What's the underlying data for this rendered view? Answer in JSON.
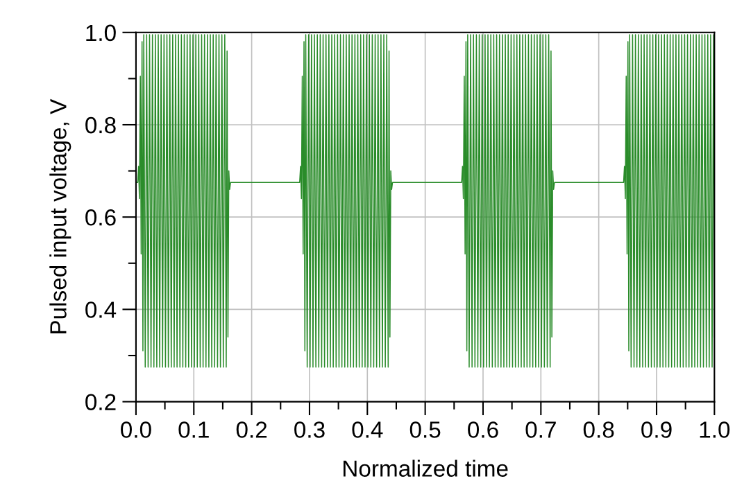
{
  "chart_data": {
    "type": "line",
    "xlabel": "Normalized time",
    "ylabel": "Pulsed input voltage, V",
    "xlim": [
      0,
      1
    ],
    "ylim": [
      0.2,
      1.0
    ],
    "xticks": [
      {
        "value": 0,
        "label": "0.0"
      },
      {
        "value": 0.05,
        "label": null
      },
      {
        "value": 0.1,
        "label": "0.1"
      },
      {
        "value": 0.15,
        "label": null
      },
      {
        "value": 0.2,
        "label": "0.2"
      },
      {
        "value": 0.25,
        "label": null
      },
      {
        "value": 0.3,
        "label": "0.3"
      },
      {
        "value": 0.35,
        "label": null
      },
      {
        "value": 0.4,
        "label": "0.4"
      },
      {
        "value": 0.45,
        "label": null
      },
      {
        "value": 0.5,
        "label": "0.5"
      },
      {
        "value": 0.55,
        "label": null
      },
      {
        "value": 0.6,
        "label": "0.6"
      },
      {
        "value": 0.65,
        "label": null
      },
      {
        "value": 0.7,
        "label": "0.7"
      },
      {
        "value": 0.75,
        "label": null
      },
      {
        "value": 0.8,
        "label": "0.8"
      },
      {
        "value": 0.85,
        "label": null
      },
      {
        "value": 0.9,
        "label": "0.9"
      },
      {
        "value": 0.95,
        "label": null
      },
      {
        "value": 1.0,
        "label": "1.0"
      }
    ],
    "yticks": [
      {
        "value": 0.2,
        "label": "0.2"
      },
      {
        "value": 0.3,
        "label": null
      },
      {
        "value": 0.4,
        "label": "0.4"
      },
      {
        "value": 0.5,
        "label": null
      },
      {
        "value": 0.6,
        "label": "0.6"
      },
      {
        "value": 0.7,
        "label": null
      },
      {
        "value": 0.8,
        "label": "0.8"
      },
      {
        "value": 0.9,
        "label": null
      },
      {
        "value": 1.0,
        "label": "1.0"
      }
    ],
    "grid": true,
    "marker": "none",
    "line_style": "solid",
    "series": [
      {
        "color": "#2a8c2a",
        "x": [
          0,
          0.003,
          0.0045,
          0.006,
          0.0075,
          0.009,
          0.0105,
          0.012,
          0.0135,
          0.016,
          0.0185,
          0.021,
          0.0235,
          0.026,
          0.0285,
          0.031,
          0.0335,
          0.036,
          0.0385,
          0.041,
          0.0435,
          0.046,
          0.0485,
          0.051,
          0.0535,
          0.056,
          0.0585,
          0.061,
          0.0635,
          0.066,
          0.0685,
          0.071,
          0.0735,
          0.076,
          0.0785,
          0.081,
          0.0835,
          0.086,
          0.0885,
          0.091,
          0.0935,
          0.096,
          0.0985,
          0.101,
          0.1035,
          0.106,
          0.1085,
          0.111,
          0.1135,
          0.116,
          0.1185,
          0.121,
          0.1235,
          0.126,
          0.1285,
          0.131,
          0.1335,
          0.136,
          0.1385,
          0.141,
          0.1435,
          0.146,
          0.1485,
          0.151,
          0.1535,
          0.156,
          0.1575,
          0.159,
          0.1605,
          0.162,
          0.1635,
          0.283,
          0.2845,
          0.286,
          0.2875,
          0.289,
          0.2905,
          0.292,
          0.2935,
          0.296,
          0.2985,
          0.301,
          0.3035,
          0.306,
          0.3085,
          0.311,
          0.3135,
          0.316,
          0.3185,
          0.321,
          0.3235,
          0.326,
          0.3285,
          0.331,
          0.3335,
          0.336,
          0.3385,
          0.341,
          0.3435,
          0.346,
          0.3485,
          0.351,
          0.3535,
          0.356,
          0.3585,
          0.361,
          0.3635,
          0.366,
          0.3685,
          0.371,
          0.3735,
          0.376,
          0.3785,
          0.381,
          0.3835,
          0.386,
          0.3885,
          0.391,
          0.3935,
          0.396,
          0.3985,
          0.401,
          0.4035,
          0.406,
          0.4085,
          0.411,
          0.4135,
          0.416,
          0.4185,
          0.421,
          0.4235,
          0.426,
          0.4285,
          0.431,
          0.4335,
          0.436,
          0.4375,
          0.439,
          0.4405,
          0.442,
          0.4435,
          0.563,
          0.5645,
          0.566,
          0.5675,
          0.569,
          0.5705,
          0.572,
          0.5735,
          0.576,
          0.5785,
          0.581,
          0.5835,
          0.586,
          0.5885,
          0.591,
          0.5935,
          0.596,
          0.5985,
          0.601,
          0.6035,
          0.606,
          0.6085,
          0.611,
          0.6135,
          0.616,
          0.6185,
          0.621,
          0.6235,
          0.626,
          0.6285,
          0.631,
          0.6335,
          0.636,
          0.6385,
          0.641,
          0.6435,
          0.646,
          0.6485,
          0.651,
          0.6535,
          0.656,
          0.6585,
          0.661,
          0.6635,
          0.666,
          0.6685,
          0.671,
          0.6735,
          0.676,
          0.6785,
          0.681,
          0.6835,
          0.686,
          0.6885,
          0.691,
          0.6935,
          0.696,
          0.6985,
          0.701,
          0.7035,
          0.706,
          0.7085,
          0.711,
          0.7135,
          0.716,
          0.7175,
          0.719,
          0.7205,
          0.722,
          0.7235,
          0.843,
          0.8445,
          0.846,
          0.8475,
          0.849,
          0.8505,
          0.852,
          0.8535,
          0.856,
          0.8585,
          0.861,
          0.8635,
          0.866,
          0.8685,
          0.871,
          0.8735,
          0.876,
          0.8785,
          0.881,
          0.8835,
          0.886,
          0.8885,
          0.891,
          0.8935,
          0.896,
          0.8985,
          0.901,
          0.9035,
          0.906,
          0.9085,
          0.911,
          0.9135,
          0.916,
          0.9185,
          0.921,
          0.9235,
          0.926,
          0.9285,
          0.931,
          0.9335,
          0.936,
          0.9385,
          0.941,
          0.9435,
          0.946,
          0.9485,
          0.951,
          0.9535,
          0.956,
          0.9585,
          0.961,
          0.9635,
          0.966,
          0.9685,
          0.971,
          0.9735,
          0.976,
          0.9785,
          0.981,
          0.9835,
          0.986,
          0.9885,
          0.991,
          0.9935,
          0.996,
          0.9985,
          1.0
        ],
        "values": [
          0.675,
          0.675,
          0.71,
          0.64,
          0.905,
          0.52,
          0.98,
          0.31,
          0.995,
          0.275,
          0.995,
          0.275,
          0.995,
          0.275,
          0.995,
          0.275,
          0.995,
          0.275,
          0.995,
          0.275,
          0.995,
          0.275,
          0.995,
          0.275,
          0.995,
          0.275,
          0.995,
          0.275,
          0.995,
          0.275,
          0.995,
          0.275,
          0.995,
          0.275,
          0.995,
          0.275,
          0.995,
          0.275,
          0.995,
          0.275,
          0.995,
          0.275,
          0.995,
          0.275,
          0.995,
          0.275,
          0.995,
          0.275,
          0.995,
          0.275,
          0.995,
          0.275,
          0.995,
          0.275,
          0.995,
          0.275,
          0.995,
          0.275,
          0.995,
          0.275,
          0.995,
          0.275,
          0.995,
          0.275,
          0.995,
          0.275,
          0.96,
          0.34,
          0.7,
          0.66,
          0.675,
          0.675,
          0.71,
          0.64,
          0.905,
          0.52,
          0.98,
          0.31,
          0.995,
          0.275,
          0.995,
          0.275,
          0.995,
          0.275,
          0.995,
          0.275,
          0.995,
          0.275,
          0.995,
          0.275,
          0.995,
          0.275,
          0.995,
          0.275,
          0.995,
          0.275,
          0.995,
          0.275,
          0.995,
          0.275,
          0.995,
          0.275,
          0.995,
          0.275,
          0.995,
          0.275,
          0.995,
          0.275,
          0.995,
          0.275,
          0.995,
          0.275,
          0.995,
          0.275,
          0.995,
          0.275,
          0.995,
          0.275,
          0.995,
          0.275,
          0.995,
          0.275,
          0.995,
          0.275,
          0.995,
          0.275,
          0.995,
          0.275,
          0.995,
          0.275,
          0.995,
          0.275,
          0.995,
          0.275,
          0.995,
          0.275,
          0.96,
          0.34,
          0.7,
          0.66,
          0.675,
          0.675,
          0.71,
          0.64,
          0.905,
          0.52,
          0.98,
          0.31,
          0.995,
          0.275,
          0.995,
          0.275,
          0.995,
          0.275,
          0.995,
          0.275,
          0.995,
          0.275,
          0.995,
          0.275,
          0.995,
          0.275,
          0.995,
          0.275,
          0.995,
          0.275,
          0.995,
          0.275,
          0.995,
          0.275,
          0.995,
          0.275,
          0.995,
          0.275,
          0.995,
          0.275,
          0.995,
          0.275,
          0.995,
          0.275,
          0.995,
          0.275,
          0.995,
          0.275,
          0.995,
          0.275,
          0.995,
          0.275,
          0.995,
          0.275,
          0.995,
          0.275,
          0.995,
          0.275,
          0.995,
          0.275,
          0.995,
          0.275,
          0.995,
          0.275,
          0.995,
          0.275,
          0.995,
          0.275,
          0.995,
          0.275,
          0.96,
          0.34,
          0.7,
          0.66,
          0.675,
          0.675,
          0.71,
          0.64,
          0.905,
          0.52,
          0.98,
          0.31,
          0.995,
          0.275,
          0.995,
          0.275,
          0.995,
          0.275,
          0.995,
          0.275,
          0.995,
          0.275,
          0.995,
          0.275,
          0.995,
          0.275,
          0.995,
          0.275,
          0.995,
          0.275,
          0.995,
          0.275,
          0.995,
          0.275,
          0.995,
          0.275,
          0.995,
          0.275,
          0.995,
          0.275,
          0.995,
          0.275,
          0.995,
          0.275,
          0.995,
          0.275,
          0.995,
          0.275,
          0.995,
          0.275,
          0.995,
          0.275,
          0.995,
          0.275,
          0.995,
          0.275,
          0.995,
          0.275,
          0.995,
          0.275,
          0.995,
          0.275,
          0.995,
          0.275,
          0.995,
          0.275,
          0.995,
          0.275,
          0.995,
          0.275,
          0.995,
          0.34
        ]
      }
    ]
  }
}
